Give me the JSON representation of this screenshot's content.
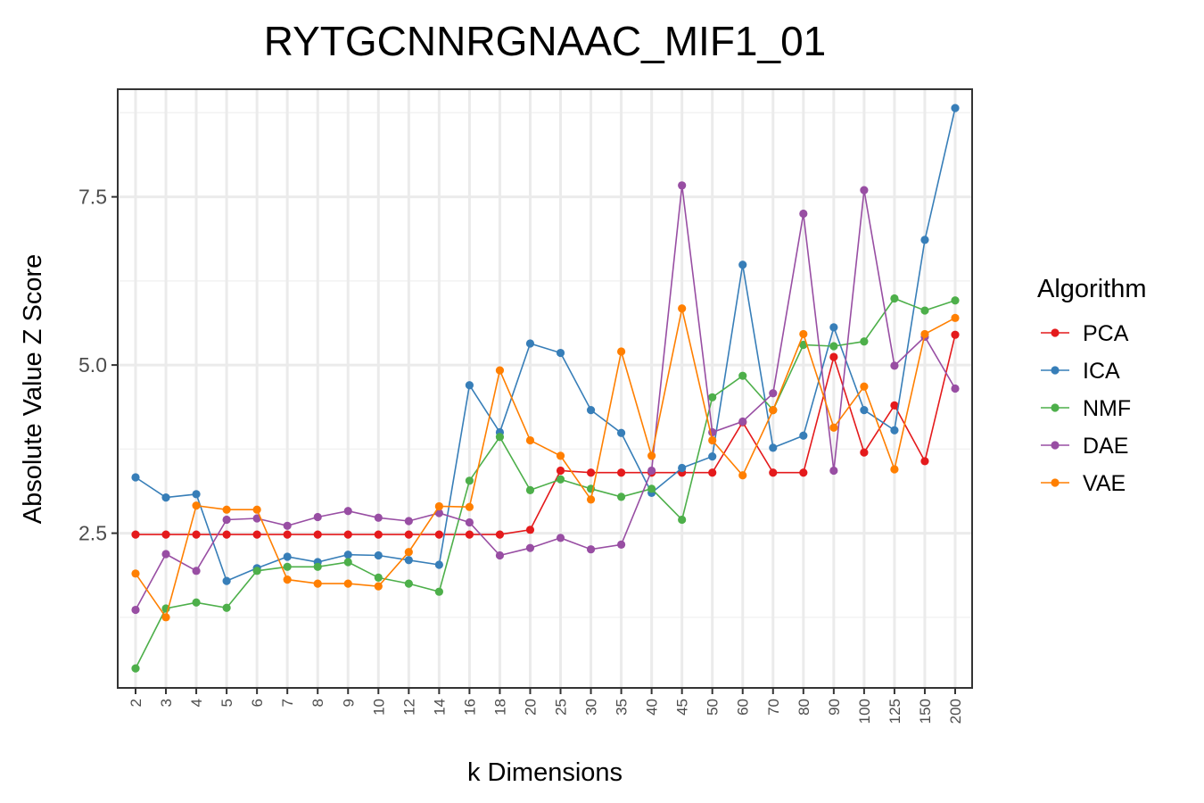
{
  "chart_data": {
    "type": "line",
    "title": "RYTGCNNRGNAAC_MIF1_01",
    "xlabel": "k Dimensions",
    "ylabel": "Absolute Value Z Score",
    "categories": [
      "2",
      "3",
      "4",
      "5",
      "6",
      "7",
      "8",
      "9",
      "10",
      "12",
      "14",
      "16",
      "18",
      "20",
      "25",
      "30",
      "35",
      "40",
      "45",
      "50",
      "60",
      "70",
      "80",
      "90",
      "100",
      "125",
      "150",
      "200"
    ],
    "yticks": [
      2.5,
      5.0,
      7.5
    ],
    "ytick_labels": [
      "2.5",
      "5.0",
      "7.5"
    ],
    "ylim": [
      0.2,
      9.1
    ],
    "grid": true,
    "legend": {
      "title": "Algorithm",
      "position": "right"
    },
    "series": [
      {
        "name": "PCA",
        "color": "#e41a1c",
        "values": [
          2.48,
          2.48,
          2.48,
          2.48,
          2.48,
          2.48,
          2.48,
          2.48,
          2.48,
          2.48,
          2.48,
          2.48,
          2.48,
          2.55,
          3.43,
          3.4,
          3.4,
          3.4,
          3.4,
          3.4,
          4.15,
          3.4,
          3.4,
          5.12,
          3.7,
          4.4,
          3.57,
          5.45
        ]
      },
      {
        "name": "ICA",
        "color": "#377eb8",
        "values": [
          3.33,
          3.03,
          3.08,
          1.79,
          1.98,
          2.15,
          2.07,
          2.18,
          2.17,
          2.1,
          2.03,
          4.7,
          4.0,
          5.32,
          5.18,
          4.33,
          3.99,
          3.1,
          3.47,
          3.64,
          6.49,
          3.77,
          3.95,
          5.56,
          4.33,
          4.03,
          6.86,
          8.82
        ]
      },
      {
        "name": "NMF",
        "color": "#4daf4a",
        "values": [
          0.49,
          1.38,
          1.47,
          1.39,
          1.94,
          2.0,
          2.0,
          2.07,
          1.84,
          1.75,
          1.63,
          3.28,
          3.93,
          3.14,
          3.3,
          3.16,
          3.04,
          3.16,
          2.7,
          4.52,
          4.84,
          4.33,
          5.3,
          5.28,
          5.35,
          5.99,
          5.81,
          5.96
        ]
      },
      {
        "name": "DAE",
        "color": "#984ea3",
        "values": [
          1.36,
          2.19,
          1.94,
          2.7,
          2.72,
          2.61,
          2.74,
          2.83,
          2.73,
          2.68,
          2.8,
          2.66,
          2.17,
          2.28,
          2.43,
          2.26,
          2.33,
          3.43,
          7.67,
          4.0,
          4.16,
          4.58,
          7.25,
          3.43,
          7.6,
          4.99,
          5.42,
          4.65
        ]
      },
      {
        "name": "VAE",
        "color": "#ff7f00",
        "values": [
          1.9,
          1.25,
          2.91,
          2.85,
          2.85,
          1.81,
          1.75,
          1.75,
          1.71,
          2.22,
          2.9,
          2.89,
          4.92,
          3.88,
          3.65,
          3.0,
          5.2,
          3.65,
          5.84,
          3.88,
          3.36,
          4.33,
          5.46,
          4.07,
          4.68,
          3.45,
          5.46,
          5.7
        ]
      }
    ]
  }
}
